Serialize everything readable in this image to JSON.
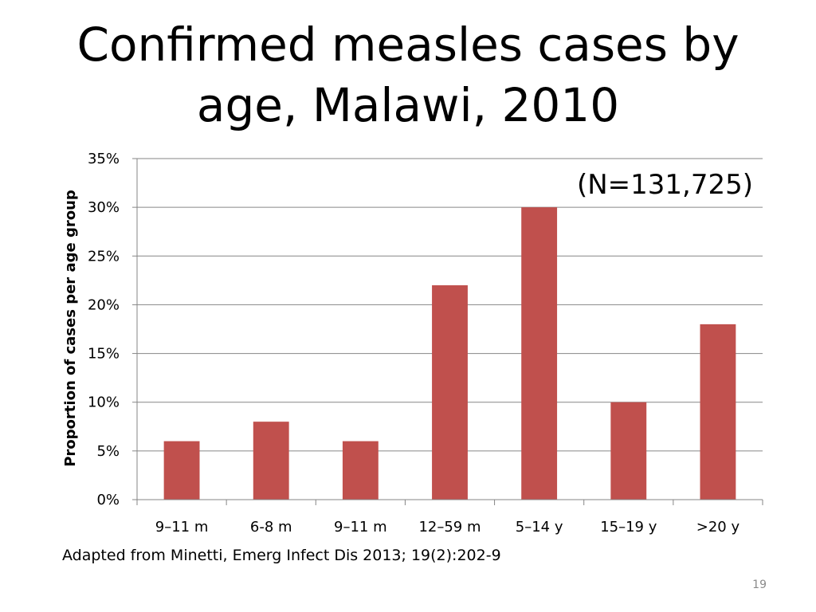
{
  "slide": {
    "title_line1": "Confirmed measles cases by",
    "title_line2": "age, Malawi, 2010",
    "source_note": "Adapted from Minetti, Emerg Infect Dis 2013; 19(2):202-9",
    "page_number": "19"
  },
  "chart_data": {
    "type": "bar",
    "title": "Confirmed measles cases by age, Malawi, 2010",
    "xlabel": "",
    "ylabel": "Proportion of cases per age group",
    "categories": [
      "9–11 m",
      "6-8 m",
      "9–11 m",
      "12–59 m",
      "5–14 y",
      "15–19 y",
      ">20 y"
    ],
    "values": [
      6,
      8,
      6,
      22,
      30,
      10,
      18
    ],
    "value_unit": "%",
    "ylim": [
      0,
      35
    ],
    "yticks": [
      0,
      5,
      10,
      15,
      20,
      25,
      30,
      35
    ],
    "ytick_labels": [
      "0%",
      "5%",
      "10%",
      "15%",
      "20%",
      "25%",
      "30%",
      "35%"
    ],
    "annotation": "(N=131,725)",
    "grid": true,
    "legend": "none",
    "bar_color": "#c0504d",
    "grid_color": "#868686"
  }
}
